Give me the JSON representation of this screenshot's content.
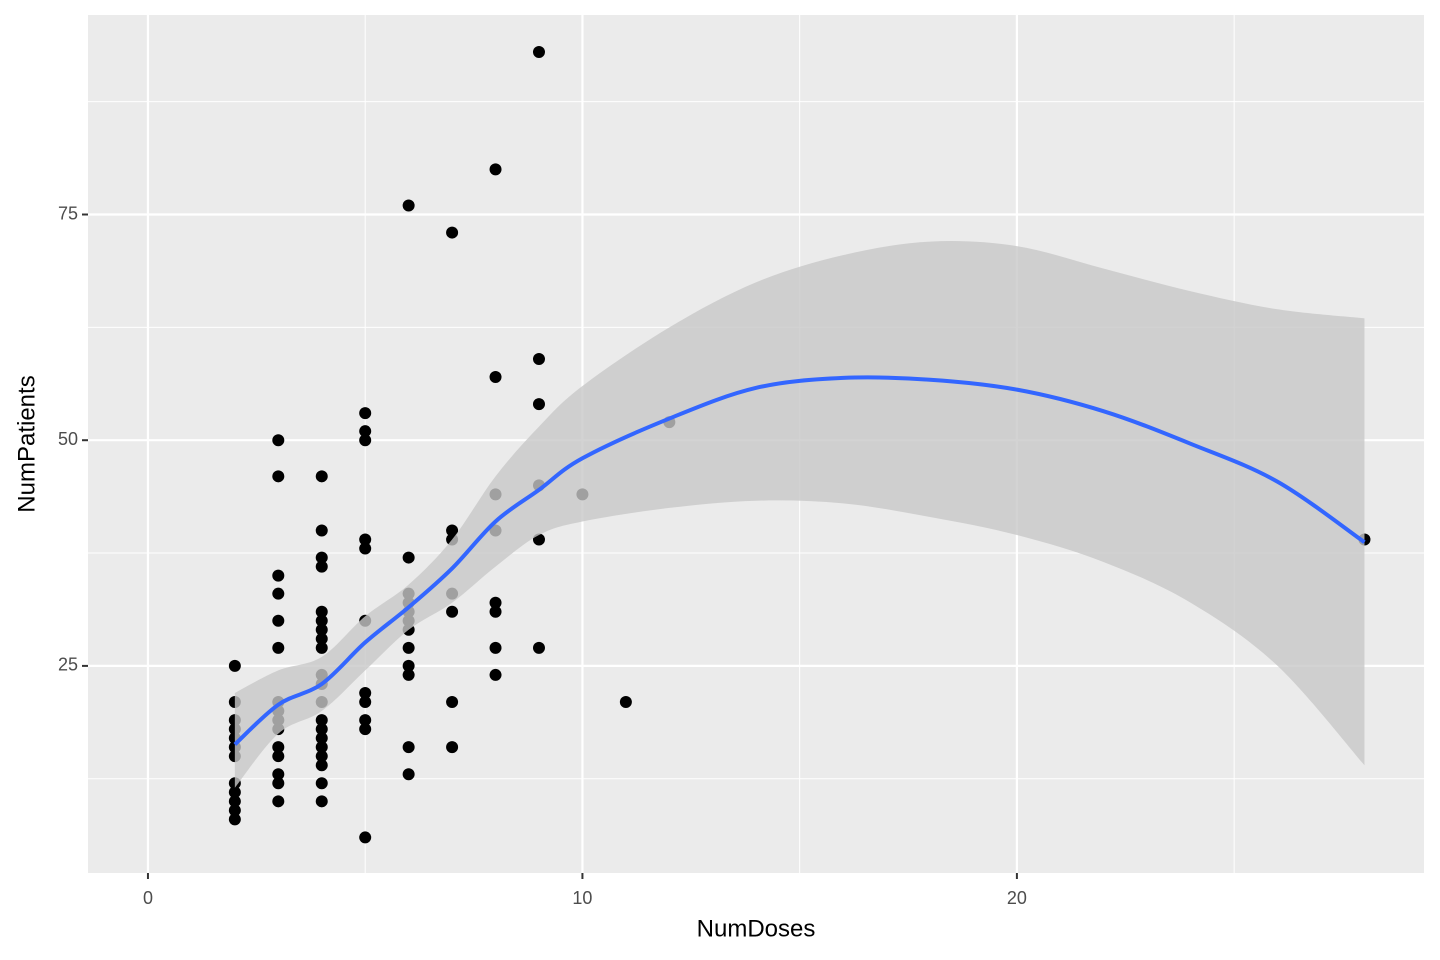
{
  "chart_data": {
    "type": "scatter",
    "x_label": "NumDoses",
    "y_label": "NumPatients",
    "xlim": [
      -1.38,
      29.37
    ],
    "ylim": [
      2.06,
      97.1
    ],
    "xticks": [
      0,
      10,
      20
    ],
    "yticks": [
      25,
      50,
      75
    ],
    "xminor": [
      5,
      15,
      25
    ],
    "yminor": [
      12.5,
      37.5,
      62.5,
      87.5
    ],
    "grid": true,
    "color": "#000000",
    "x": [
      2,
      2,
      2,
      2,
      2,
      2,
      2,
      2,
      2,
      2,
      2,
      2,
      3,
      3,
      3,
      3,
      3,
      3,
      3,
      3,
      3,
      3,
      3,
      3,
      3,
      3,
      3,
      4,
      4,
      4,
      4,
      4,
      4,
      4,
      4,
      4,
      4,
      4,
      4,
      4,
      4,
      4,
      4,
      4,
      4,
      4,
      4,
      5,
      5,
      5,
      5,
      5,
      5,
      5,
      5,
      5,
      5,
      5,
      6,
      6,
      6,
      6,
      6,
      6,
      6,
      6,
      6,
      6,
      6,
      6,
      7,
      7,
      7,
      7,
      7,
      7,
      7,
      8,
      8,
      8,
      8,
      8,
      8,
      8,
      8,
      9,
      9,
      9,
      9,
      9,
      9,
      10,
      11,
      12,
      28
    ],
    "y": [
      25,
      21,
      19,
      18,
      17,
      16,
      15,
      12,
      11,
      10,
      9,
      8,
      50,
      46,
      35,
      33,
      30,
      27,
      21,
      20,
      19,
      18,
      16,
      15,
      13,
      12,
      10,
      46,
      40,
      37,
      36,
      31,
      30,
      29,
      28,
      27,
      24,
      23,
      21,
      19,
      18,
      17,
      16,
      15,
      14,
      12,
      10,
      53,
      51,
      50,
      39,
      38,
      30,
      22,
      21,
      19,
      18,
      6,
      76,
      37,
      33,
      32,
      31,
      30,
      29,
      27,
      25,
      24,
      16,
      13,
      73,
      40,
      39,
      33,
      31,
      21,
      16,
      80,
      57,
      44,
      40,
      32,
      31,
      27,
      24,
      93,
      59,
      54,
      45,
      39,
      27,
      44,
      21,
      52,
      39
    ],
    "smooth": {
      "color": "#3366ff",
      "band_color": "#c8c8c8",
      "x": [
        2,
        3,
        4,
        5,
        6,
        7,
        8,
        9,
        10,
        12,
        14,
        16,
        18,
        20,
        22,
        24,
        26,
        28
      ],
      "values": [
        16.3,
        20.7,
        23,
        27.6,
        31.5,
        35.8,
        41,
        44.5,
        48,
        52.4,
        55.8,
        56.9,
        56.7,
        55.6,
        53.2,
        49.6,
        45.4,
        38.7
      ],
      "upper": [
        22,
        24.5,
        26,
        30.5,
        34,
        39,
        46,
        51.5,
        56,
        62.5,
        67.5,
        70.5,
        72,
        71.5,
        69,
        66.5,
        64.5,
        63.5
      ],
      "lower": [
        11.5,
        17.5,
        20,
        24.5,
        29,
        32,
        36,
        39.5,
        41,
        42.5,
        43.3,
        43,
        41.5,
        39.5,
        36.5,
        32,
        25,
        14
      ]
    }
  }
}
